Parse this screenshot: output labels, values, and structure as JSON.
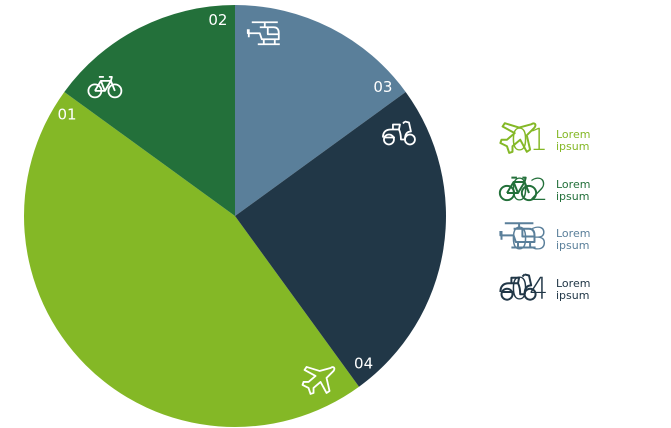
{
  "chart_data": {
    "type": "pie",
    "categories": [
      "01",
      "02",
      "03",
      "04"
    ],
    "values": [
      45,
      15,
      15,
      25
    ],
    "colors": [
      "#84b826",
      "#23703a",
      "#5a7f9a",
      "#213747"
    ],
    "legend_labels": [
      "Lorem ipsum",
      "Lorem ipsum",
      "Lorem ipsum",
      "Lorem ipsum"
    ]
  }
}
